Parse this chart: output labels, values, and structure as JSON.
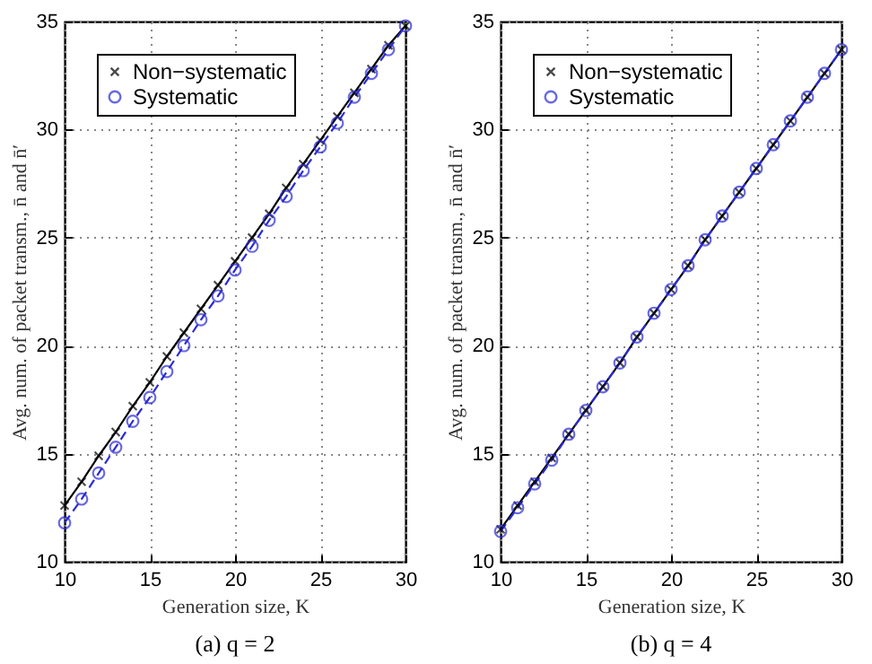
{
  "chart_data": [
    {
      "type": "line",
      "title": "(a) q = 2",
      "xlabel": "Generation size, K",
      "ylabel": "Avg. num. of packet transm., n̄ and n̄′",
      "x": [
        10,
        11,
        12,
        13,
        14,
        15,
        16,
        17,
        18,
        19,
        20,
        21,
        22,
        23,
        24,
        25,
        26,
        27,
        28,
        29,
        30
      ],
      "xlim": [
        10,
        30
      ],
      "xticks": [
        10,
        15,
        20,
        25,
        30
      ],
      "ylim": [
        10,
        35
      ],
      "yticks": [
        10,
        15,
        20,
        25,
        30,
        35
      ],
      "grid": true,
      "legend": "top left",
      "series": [
        {
          "name": "Non−systematic",
          "color": "#000000",
          "marker": "cross",
          "line_style": "solid",
          "values": [
            12.6,
            13.7,
            14.9,
            16.0,
            17.2,
            18.3,
            19.5,
            20.6,
            21.7,
            22.8,
            23.9,
            25.0,
            26.1,
            27.3,
            28.4,
            29.5,
            30.6,
            31.7,
            32.8,
            33.9,
            34.8
          ]
        },
        {
          "name": "Systematic",
          "color": "#2b2bd6",
          "marker": "circle",
          "line_style": "dashed",
          "values": [
            11.8,
            12.9,
            14.1,
            15.3,
            16.5,
            17.6,
            18.8,
            20.0,
            21.2,
            22.3,
            23.5,
            24.6,
            25.8,
            26.9,
            28.1,
            29.2,
            30.3,
            31.5,
            32.6,
            33.7,
            34.8
          ]
        }
      ]
    },
    {
      "type": "line",
      "title": "(b) q = 4",
      "xlabel": "Generation size, K",
      "ylabel": "Avg. num. of packet transm., n̄ and n̄′",
      "x": [
        10,
        11,
        12,
        13,
        14,
        15,
        16,
        17,
        18,
        19,
        20,
        21,
        22,
        23,
        24,
        25,
        26,
        27,
        28,
        29,
        30
      ],
      "xlim": [
        10,
        30
      ],
      "xticks": [
        10,
        15,
        20,
        25,
        30
      ],
      "ylim": [
        10,
        35
      ],
      "yticks": [
        10,
        15,
        20,
        25,
        30,
        35
      ],
      "grid": true,
      "legend": "top left",
      "series": [
        {
          "name": "Non−systematic",
          "color": "#000000",
          "marker": "cross",
          "line_style": "solid",
          "values": [
            11.5,
            12.6,
            13.7,
            14.8,
            15.9,
            17.0,
            18.1,
            19.2,
            20.4,
            21.5,
            22.6,
            23.7,
            24.9,
            26.0,
            27.1,
            28.2,
            29.3,
            30.4,
            31.5,
            32.6,
            33.7
          ]
        },
        {
          "name": "Systematic",
          "color": "#2b2bd6",
          "marker": "circle",
          "line_style": "dashed",
          "values": [
            11.4,
            12.5,
            13.6,
            14.7,
            15.9,
            17.0,
            18.1,
            19.2,
            20.4,
            21.5,
            22.6,
            23.7,
            24.9,
            26.0,
            27.1,
            28.2,
            29.3,
            30.4,
            31.5,
            32.6,
            33.7
          ]
        }
      ]
    }
  ]
}
